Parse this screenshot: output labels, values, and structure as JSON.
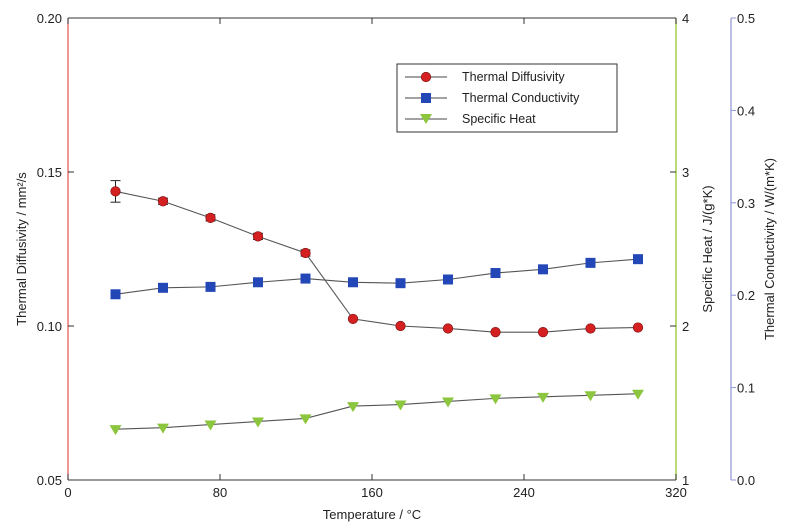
{
  "chart_data": {
    "type": "line",
    "xlabel": "Temperature / °C",
    "xlim": [
      0,
      320
    ],
    "xticks": [
      "0",
      "80",
      "160",
      "240",
      "320"
    ],
    "axes": {
      "left": {
        "label": "Thermal Diffusivity / mm²/s",
        "ylim": [
          0.05,
          0.2
        ],
        "ticks": [
          "0.05",
          "0.10",
          "0.15",
          "0.20"
        ],
        "color": "#e05050"
      },
      "right1": {
        "label": "Specific Heat / J/(g*K)",
        "ylim": [
          1,
          4
        ],
        "ticks": [
          "1",
          "2",
          "3",
          "4"
        ],
        "color": "#9ccc3c"
      },
      "right2": {
        "label": "Thermal Conductivity / W/(m*K)",
        "ylim": [
          0,
          0.5
        ],
        "ticks": [
          "0.0",
          "0.1",
          "0.2",
          "0.3",
          "0.4",
          "0.5"
        ],
        "color": "#8f93d6"
      }
    },
    "grid": false,
    "legend_position": "top-right",
    "series": [
      {
        "name": "Thermal Diffusivity",
        "axis": "left",
        "marker": "circle",
        "color": "#d42020",
        "x": [
          25,
          50,
          75,
          100,
          125,
          150,
          175,
          200,
          225,
          250,
          275,
          300
        ],
        "y": [
          0.1437,
          0.1405,
          0.1351,
          0.1291,
          0.1237,
          0.1023,
          0.1,
          0.0992,
          0.098,
          0.098,
          0.0992,
          0.0995
        ],
        "error": [
          0.0035,
          0.001,
          0.001,
          0.001,
          0.001,
          0.0005,
          0.0005,
          0.0005,
          0.0005,
          0.0005,
          0.0005,
          0.0005
        ]
      },
      {
        "name": "Thermal Conductivity",
        "axis": "right2",
        "marker": "square",
        "color": "#2447b8",
        "x": [
          25,
          50,
          75,
          100,
          125,
          150,
          175,
          200,
          225,
          250,
          275,
          300
        ],
        "y": [
          0.201,
          0.208,
          0.209,
          0.214,
          0.218,
          0.214,
          0.213,
          0.217,
          0.224,
          0.228,
          0.235,
          0.239
        ]
      },
      {
        "name": "Specific Heat",
        "axis": "right1",
        "marker": "triangle-down",
        "color": "#8cc63f",
        "x": [
          25,
          50,
          75,
          100,
          125,
          150,
          175,
          200,
          225,
          250,
          275,
          300
        ],
        "y": [
          1.33,
          1.34,
          1.36,
          1.38,
          1.4,
          1.48,
          1.49,
          1.51,
          1.53,
          1.54,
          1.55,
          1.56
        ]
      }
    ]
  }
}
